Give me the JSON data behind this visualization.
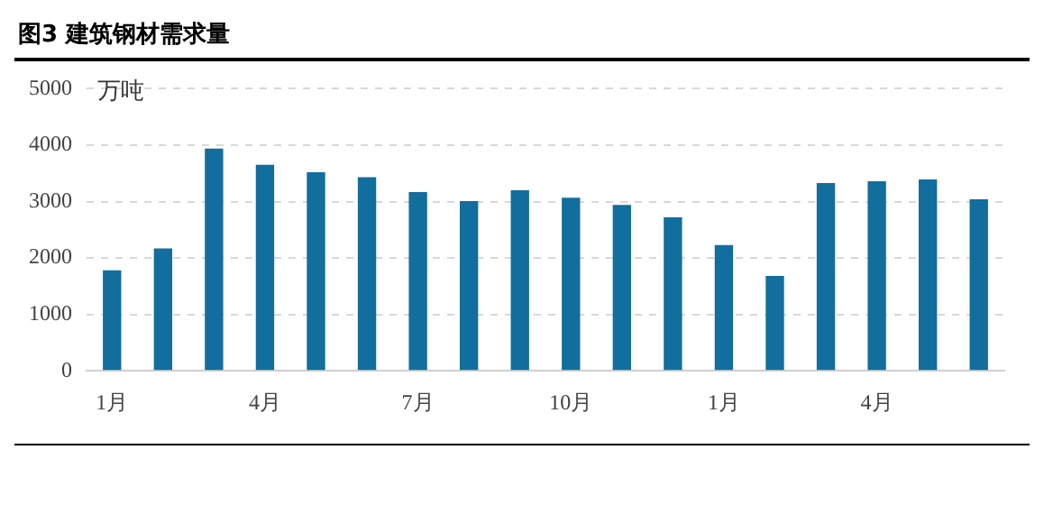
{
  "chart_data": {
    "type": "bar",
    "title": "图3 建筑钢材需求量",
    "ylabel": "万吨",
    "categories": [
      "1月",
      null,
      null,
      "4月",
      null,
      null,
      "7月",
      null,
      null,
      "10月",
      null,
      null,
      "1月",
      null,
      null,
      "4月",
      null,
      null
    ],
    "values": [
      1780,
      2170,
      3940,
      3650,
      3520,
      3430,
      3170,
      3010,
      3200,
      3070,
      2940,
      2720,
      2230,
      1680,
      3330,
      3360,
      3390,
      3040
    ],
    "color": "#126e9c",
    "ylim": [
      0,
      5000
    ],
    "yticks": [
      0,
      1000,
      2000,
      3000,
      4000,
      5000
    ],
    "grid": "y"
  }
}
